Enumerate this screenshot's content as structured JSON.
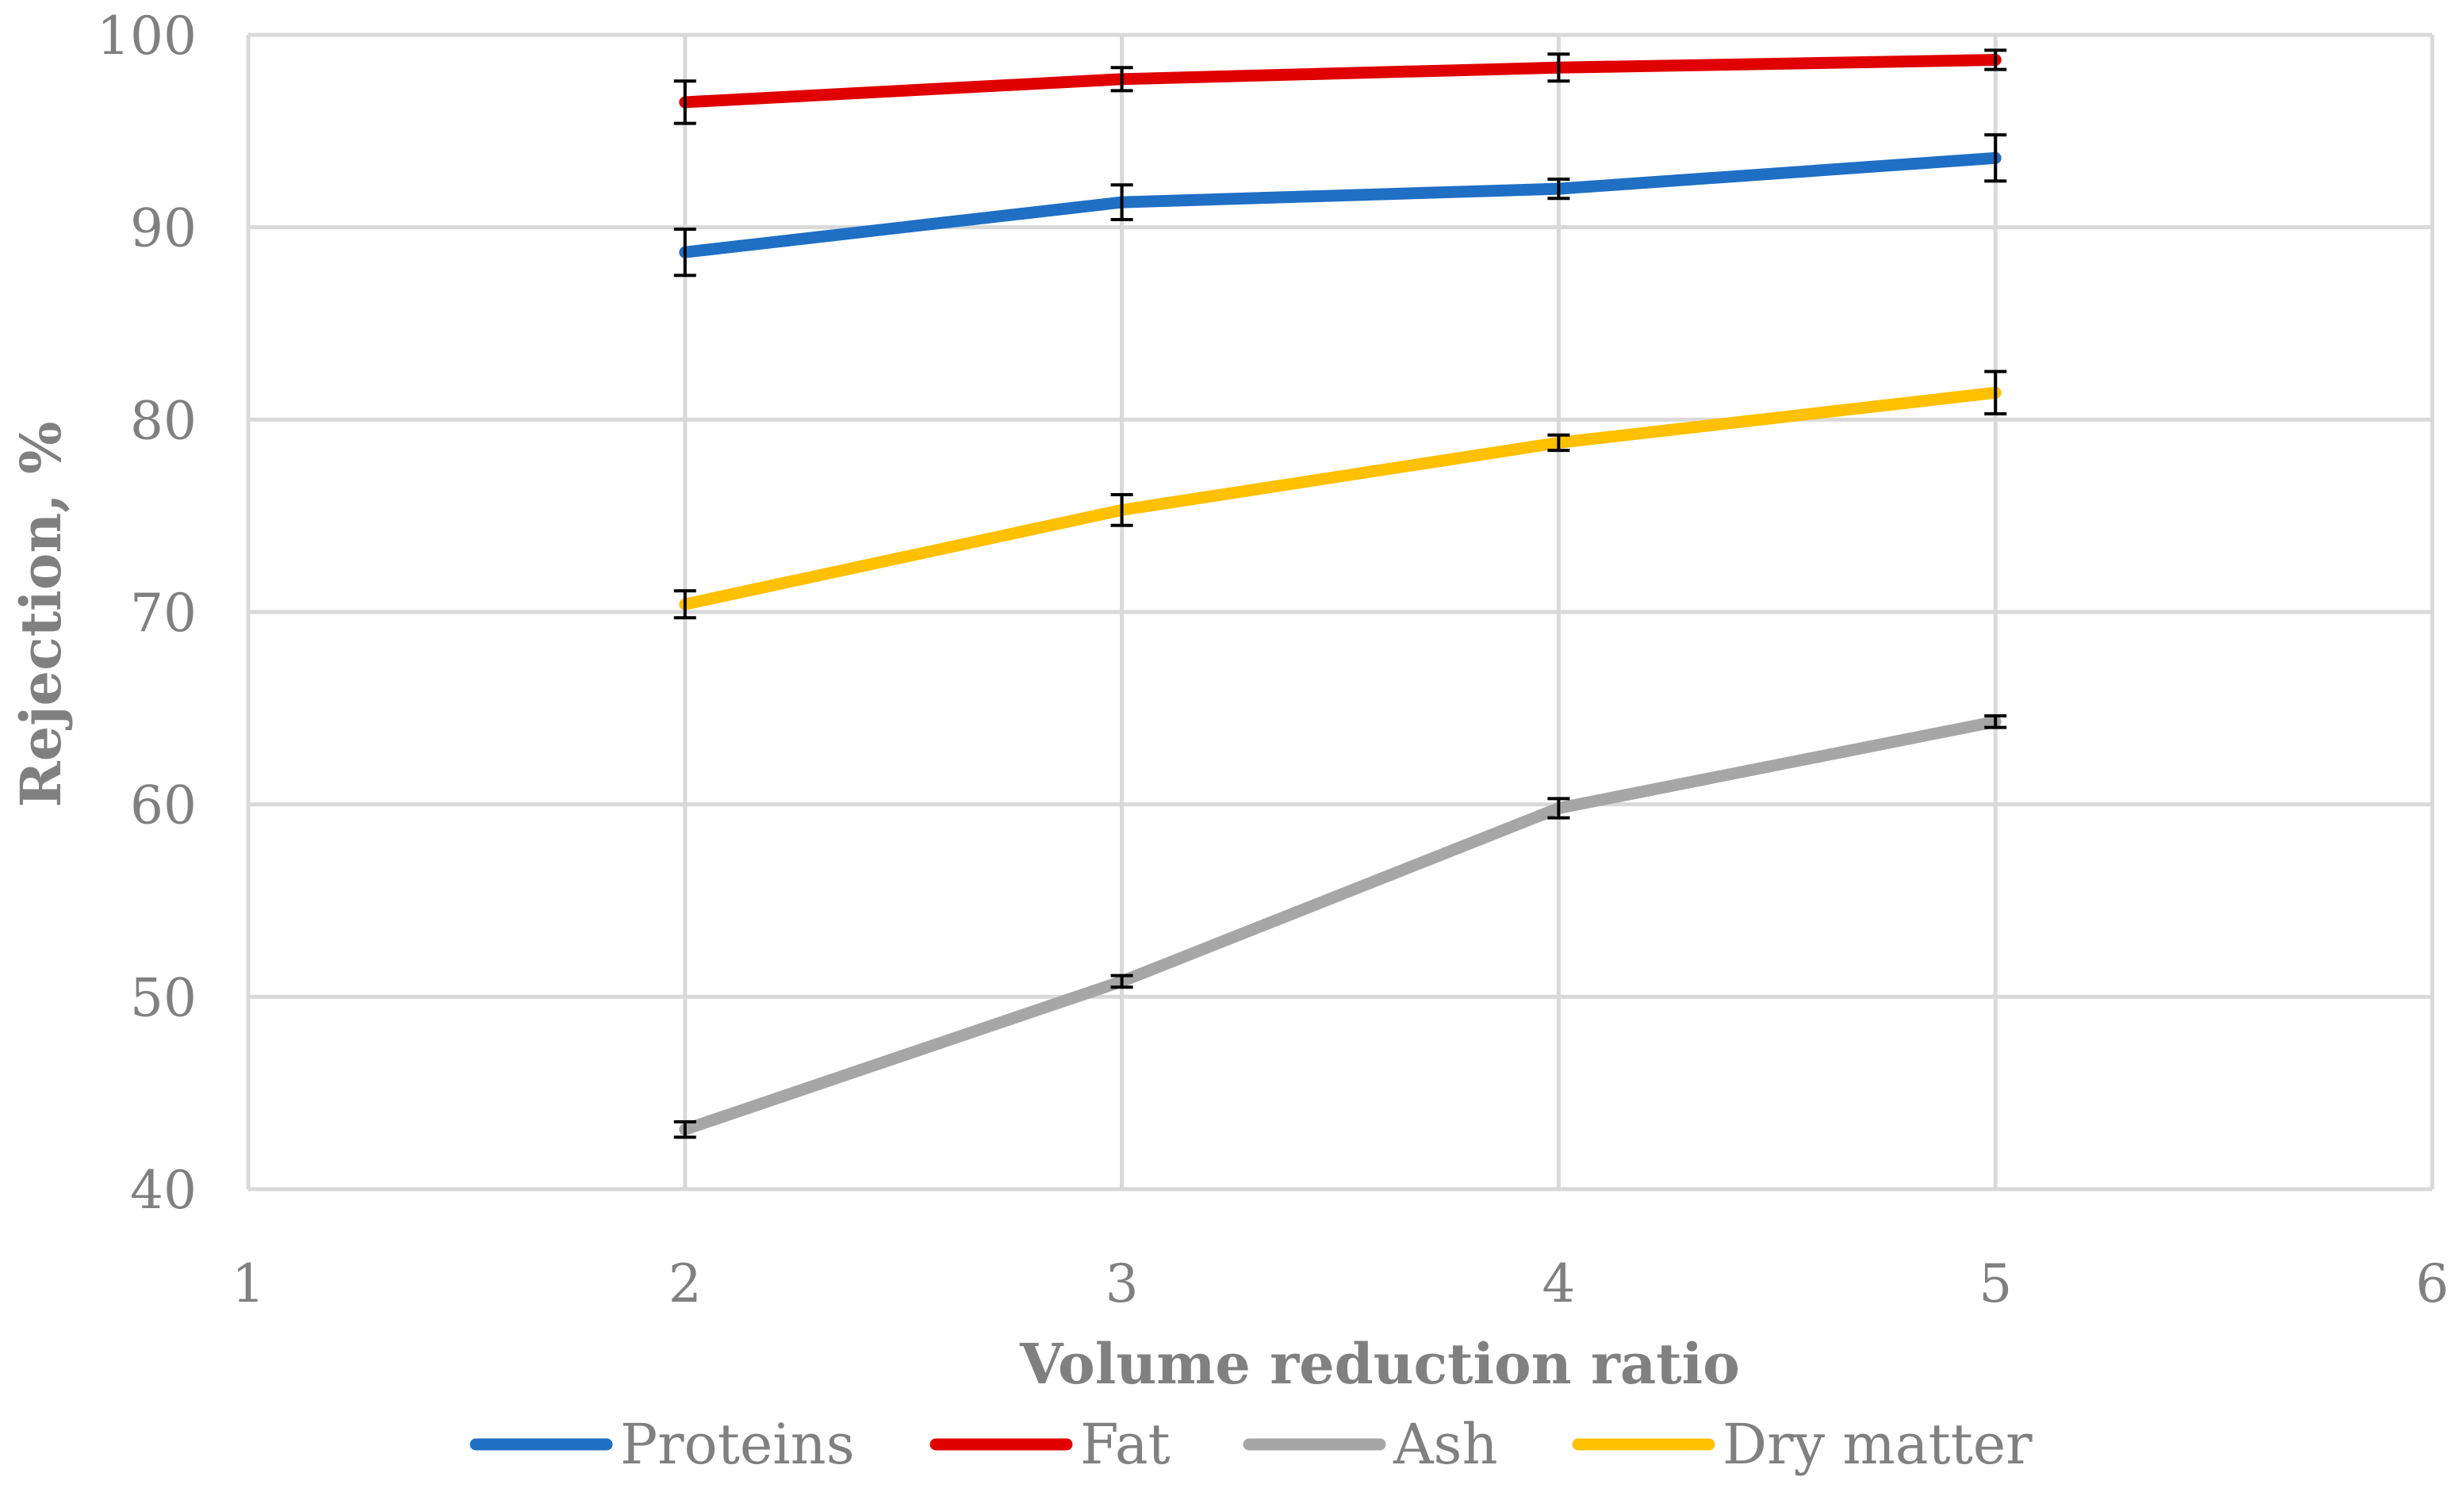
{
  "chart_data": {
    "type": "line",
    "title": "",
    "xlabel": "Volume reduction ratio",
    "ylabel": "Rejection, %",
    "xlim": [
      1,
      6
    ],
    "ylim": [
      40,
      100
    ],
    "x_ticks": [
      1,
      2,
      3,
      4,
      5,
      6
    ],
    "y_ticks": [
      40,
      50,
      60,
      70,
      80,
      90,
      100
    ],
    "x_tick_labels": [
      "1",
      "2",
      "3",
      "4",
      "5",
      "6"
    ],
    "y_tick_labels": [
      "40",
      "50",
      "60",
      "70",
      "80",
      "90",
      "100"
    ],
    "grid": true,
    "legend_position": "bottom",
    "x": [
      2,
      3,
      4,
      5
    ],
    "series": [
      {
        "name": "Proteins",
        "color": "#1f6fc4",
        "values": [
          88.7,
          91.3,
          92.0,
          93.6
        ],
        "errors": [
          1.2,
          0.9,
          0.5,
          1.2
        ]
      },
      {
        "name": "Fat",
        "color": "#e00000",
        "values": [
          96.5,
          97.7,
          98.3,
          98.7
        ],
        "errors": [
          1.1,
          0.6,
          0.7,
          0.5
        ]
      },
      {
        "name": "Ash",
        "color": "#a6a6a6",
        "values": [
          43.1,
          50.8,
          59.8,
          64.3
        ],
        "errors": [
          0.4,
          0.3,
          0.5,
          0.3
        ]
      },
      {
        "name": "Dry matter",
        "color": "#ffc000",
        "values": [
          70.4,
          75.3,
          78.8,
          81.4
        ],
        "errors": [
          0.7,
          0.8,
          0.4,
          1.1
        ]
      }
    ]
  }
}
